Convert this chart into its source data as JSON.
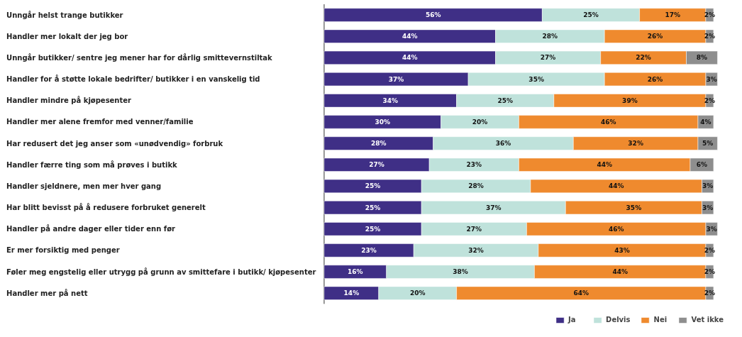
{
  "chart_data": {
    "type": "bar",
    "orientation": "horizontal",
    "stacked": true,
    "tick_labels": "y",
    "legend": "bottom",
    "grid": false,
    "categories": [
      "Unngår helst trange butikker",
      "Handler mer lokalt der jeg bor",
      "Unngår butikker/ sentre jeg mener har for dårlig smittevernstiltak",
      "Handler for å støtte lokale bedrifter/ butikker i en vanskelig tid",
      "Handler mindre på kjøpesenter",
      "Handler mer alene fremfor med venner/familie",
      "Har redusert det jeg anser som «unødvendig» forbruk",
      "Handler færre ting som må prøves i butikk",
      "Handler sjeldnere, men mer hver gang",
      "Har blitt bevisst på å redusere forbruket generelt",
      "Handler på andre dager eller tider enn før",
      "Er mer forsiktig med penger",
      "Føler meg engstelig eller utrygg på grunn av smittefare i butikk/ kjøpesenter",
      "Handler mer på nett"
    ],
    "series": [
      {
        "name": "Ja",
        "color": "#3f2f86",
        "values": [
          56,
          44,
          44,
          37,
          34,
          30,
          28,
          27,
          25,
          25,
          25,
          23,
          16,
          14
        ],
        "value_labels": [
          "56%",
          "44%",
          "44%",
          "37%",
          "34%",
          "30%",
          "28%",
          "27%",
          "25%",
          "25%",
          "25%",
          "23%",
          "16%",
          "14%"
        ]
      },
      {
        "name": "Delvis",
        "color": "#bfe2db",
        "values": [
          25,
          28,
          27,
          35,
          25,
          20,
          36,
          23,
          28,
          37,
          27,
          32,
          38,
          20
        ],
        "value_labels": [
          "25%",
          "28%",
          "27%",
          "35%",
          "25%",
          "20%",
          "36%",
          "23%",
          "28%",
          "37%",
          "27%",
          "32%",
          "38%",
          "20%"
        ]
      },
      {
        "name": "Nei",
        "color": "#ef8a2e",
        "values": [
          17,
          26,
          22,
          26,
          39,
          46,
          32,
          44,
          44,
          35,
          46,
          43,
          44,
          64
        ],
        "value_labels": [
          "17%",
          "26%",
          "22%",
          "26%",
          "39%",
          "46%",
          "32%",
          "44%",
          "44%",
          "35%",
          "46%",
          "43%",
          "44%",
          "64%"
        ]
      },
      {
        "name": "Vet ikke",
        "color": "#8e8e8e",
        "values": [
          2,
          2,
          8,
          3,
          2,
          4,
          5,
          6,
          3,
          3,
          3,
          2,
          2,
          2
        ],
        "value_labels": [
          "2%",
          "2%",
          "8%",
          "3%",
          "2%",
          "4%",
          "5%",
          "6%",
          "3%",
          "3%",
          "3%",
          "2%",
          "2%",
          "2%"
        ]
      }
    ]
  }
}
